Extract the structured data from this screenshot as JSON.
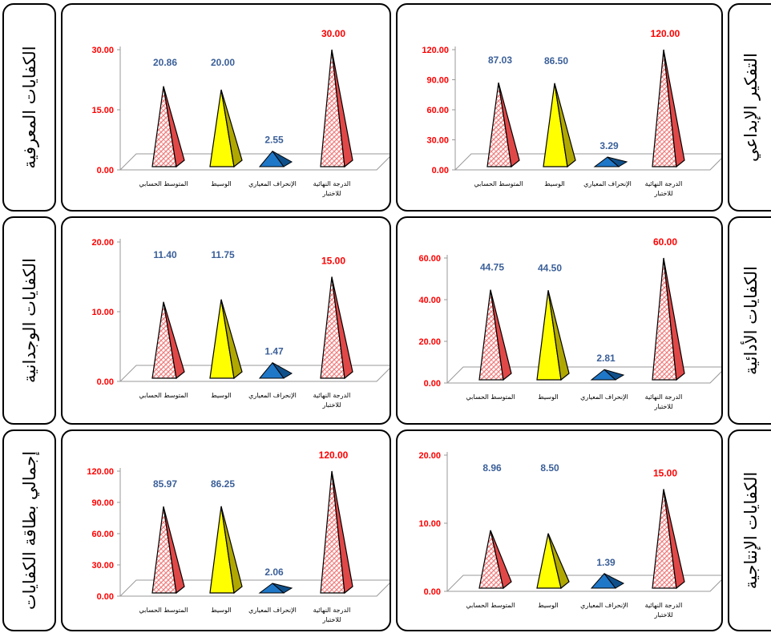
{
  "chart_data": [
    {
      "type": "bar",
      "title": "الكفايات المعرفية",
      "categories": [
        "المتوسط الحسابي",
        "الوسيط",
        "الإنحراف المعياري",
        "الدرجة النهائية للاختبار"
      ],
      "values": [
        20.86,
        20.0,
        2.55,
        30.0
      ],
      "value_labels": [
        "20.86",
        "20.00",
        "2.55",
        "30.00"
      ],
      "yticks": [
        "0.00",
        "15.00",
        "30.00"
      ],
      "ylim": [
        0,
        30
      ]
    },
    {
      "type": "bar",
      "title": "التفكير الإبداعي",
      "categories": [
        "المتوسط الحسابي",
        "الوسيط",
        "الإنحراف المعياري",
        "الدرجة النهائية للاختبار"
      ],
      "values": [
        87.03,
        86.5,
        3.29,
        120.0
      ],
      "value_labels": [
        "87.03",
        "86.50",
        "3.29",
        "120.00"
      ],
      "yticks": [
        "0.00",
        "30.00",
        "60.00",
        "90.00",
        "120.00"
      ],
      "ylim": [
        0,
        120
      ]
    },
    {
      "type": "bar",
      "title": "الكفايات الوجدانية",
      "categories": [
        "المتوسط الحسابي",
        "الوسيط",
        "الإنحراف المعياري",
        "الدرجة النهائية للاختبار"
      ],
      "values": [
        11.4,
        11.75,
        1.47,
        15.0
      ],
      "value_labels": [
        "11.40",
        "11.75",
        "1.47",
        "15.00"
      ],
      "yticks": [
        "0.00",
        "10.00",
        "20.00"
      ],
      "ylim": [
        0,
        20
      ]
    },
    {
      "type": "bar",
      "title": "الكفايات الأدائية",
      "categories": [
        "المتوسط الحسابي",
        "الوسيط",
        "الإنحراف المعياري",
        "الدرجة النهائية للاختبار"
      ],
      "values": [
        44.75,
        44.5,
        2.81,
        60.0
      ],
      "value_labels": [
        "44.75",
        "44.50",
        "2.81",
        "60.00"
      ],
      "yticks": [
        "0.00",
        "20.00",
        "40.00",
        "60.00"
      ],
      "ylim": [
        0,
        60
      ]
    },
    {
      "type": "bar",
      "title": "إجمالي بطاقة الكفايات",
      "categories": [
        "المتوسط الحسابي",
        "الوسيط",
        "الإنحراف المعياري",
        "الدرجة النهائية للاختبار"
      ],
      "values": [
        85.97,
        86.25,
        2.06,
        120.0
      ],
      "value_labels": [
        "85.97",
        "86.25",
        "2.06",
        "120.00"
      ],
      "yticks": [
        "0.00",
        "30.00",
        "60.00",
        "90.00",
        "120.00"
      ],
      "ylim": [
        0,
        120
      ]
    },
    {
      "type": "bar",
      "title": "الكفايات الإنتاجية",
      "categories": [
        "المتوسط الحسابي",
        "الوسيط",
        "الإنحراف المعياري",
        "الدرجة النهائية للاختبار"
      ],
      "values": [
        8.96,
        8.5,
        1.39,
        15.0
      ],
      "value_labels": [
        "8.96",
        "8.50",
        "1.39",
        "15.00"
      ],
      "yticks": [
        "0.00",
        "10.00",
        "20.00"
      ],
      "ylim": [
        0,
        20
      ]
    }
  ],
  "colors": {
    "pattern_pyramid": "#f08080",
    "median_pyramid": "#ffff00",
    "std_pyramid": "#1f77c8",
    "tick_text": "#ff0000",
    "value_text": "#3a5f99",
    "max_value_text": "#ff0000"
  }
}
